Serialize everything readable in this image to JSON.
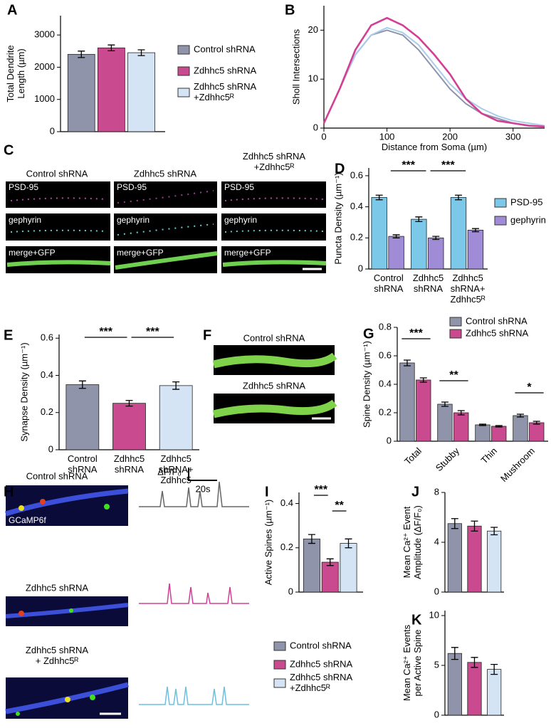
{
  "chart_data": [
    {
      "type": "bar",
      "panel": "A",
      "ylabel": "Total Dendrite\nLength (µm)",
      "categories": [
        null
      ],
      "series": [
        {
          "name": "Control shRNA",
          "color": "#8f94aa",
          "values": [
            2400
          ],
          "errors": [
            100
          ]
        },
        {
          "name": "Zdhhc5 shRNA",
          "color": "#c94a8e",
          "values": [
            2600
          ],
          "errors": [
            90
          ]
        },
        {
          "name": "Zdhhc5 shRNA\n+Zdhhc5ᴿ",
          "color": "#d4e4f5",
          "values": [
            2450
          ],
          "errors": [
            90
          ]
        }
      ],
      "ylim": [
        0,
        3600
      ],
      "yticks": [
        0,
        1000,
        2000,
        3000
      ],
      "legend": "right"
    },
    {
      "type": "line",
      "panel": "B",
      "xlabel": "Distance from Soma (µm)",
      "ylabel": "Sholl Intersections",
      "x": [
        0,
        25,
        50,
        75,
        100,
        125,
        150,
        175,
        200,
        225,
        250,
        275,
        300,
        325,
        350
      ],
      "series": [
        {
          "name": "Control shRNA",
          "color": "#8f94aa",
          "values": [
            1,
            8,
            15,
            19,
            20,
            19,
            16,
            12,
            8,
            5,
            3,
            2,
            1,
            0.5,
            0.3
          ]
        },
        {
          "name": "Zdhhc5 shRNA\n+Zdhhc5ᴿ",
          "color": "#a9cbec",
          "values": [
            1,
            8,
            15,
            19,
            20.5,
            19.5,
            17,
            13,
            9,
            6,
            4,
            2.5,
            1.5,
            1,
            0.5
          ]
        },
        {
          "name": "Zdhhc5 shRNA",
          "color": "#d23f95",
          "values": [
            1,
            8,
            16,
            21,
            22.5,
            21,
            18.5,
            15,
            11,
            6,
            3,
            1.5,
            1,
            0.5,
            0.3
          ]
        }
      ],
      "xlim": [
        0,
        350
      ],
      "xticks": [
        0,
        100,
        200,
        300
      ],
      "ylim": [
        0,
        25
      ],
      "yticks": [
        0,
        10,
        20
      ]
    },
    {
      "type": "bar",
      "panel": "D",
      "ylabel": "Puncta Density (µm⁻¹)",
      "categories": [
        "Control\nshRNA",
        "Zdhhc5\nshRNA",
        "Zdhhc5\nshRNA+\nZdhhc5ᴿ"
      ],
      "series": [
        {
          "name": "PSD-95",
          "color": "#7cc8e8",
          "values": [
            0.46,
            0.32,
            0.46
          ],
          "errors": [
            0.015,
            0.015,
            0.015
          ]
        },
        {
          "name": "gephyrin",
          "color": "#a08bd6",
          "values": [
            0.21,
            0.2,
            0.25
          ],
          "errors": [
            0.01,
            0.01,
            0.01
          ]
        }
      ],
      "ylim": [
        0,
        0.65
      ],
      "yticks": [
        0,
        0.2,
        0.4,
        0.6
      ],
      "significance": [
        "***",
        "***"
      ],
      "legend": "right"
    },
    {
      "type": "bar",
      "panel": "E",
      "ylabel": "Synapse Density (µm⁻¹)",
      "categories": [
        "Control\nshRNA",
        "Zdhhc5\nshRNA",
        "Zdhhc5\nshRNA+\nZdhhc5"
      ],
      "values": [
        0.35,
        0.25,
        0.345
      ],
      "errors": [
        0.02,
        0.015,
        0.02
      ],
      "colors": [
        "#8f94aa",
        "#c94a8e",
        "#d4e4f5"
      ],
      "ylim": [
        0,
        0.62
      ],
      "yticks": [
        0,
        0.2,
        0.4,
        0.6
      ],
      "significance": [
        "***",
        "***"
      ]
    },
    {
      "type": "bar",
      "panel": "G",
      "ylabel": "Spine Density (µm⁻¹)",
      "categories": [
        "Total",
        "Stubby",
        "Thin",
        "Mushroom"
      ],
      "xtick_rotation": 45,
      "series": [
        {
          "name": "Control shRNA",
          "color": "#8f94aa",
          "values": [
            0.55,
            0.26,
            0.115,
            0.18
          ],
          "errors": [
            0.02,
            0.015,
            0.005,
            0.01
          ]
        },
        {
          "name": "Zdhhc5 shRNA",
          "color": "#c94a8e",
          "values": [
            0.43,
            0.2,
            0.105,
            0.13
          ],
          "errors": [
            0.015,
            0.015,
            0.005,
            0.01
          ]
        }
      ],
      "ylim": [
        0,
        0.8
      ],
      "yticks": [
        0,
        0.2,
        0.4,
        0.6,
        0.8
      ],
      "significance": [
        "***",
        "**",
        null,
        "*"
      ],
      "legend": "top"
    },
    {
      "type": "bar",
      "panel": "I",
      "ylabel": "Active Spines (µm⁻¹)",
      "categories": [
        null
      ],
      "series": [
        {
          "name": "Control shRNA",
          "color": "#8f94aa",
          "values": [
            0.24
          ],
          "errors": [
            0.02
          ]
        },
        {
          "name": "Zdhhc5 shRNA",
          "color": "#c94a8e",
          "values": [
            0.135
          ],
          "errors": [
            0.015
          ]
        },
        {
          "name": "Zdhhc5 shRNA\n+Zdhhc5ᴿ",
          "color": "#d4e4f5",
          "values": [
            0.22
          ],
          "errors": [
            0.02
          ]
        }
      ],
      "ylim": [
        0,
        0.45
      ],
      "yticks": [
        0,
        0.2,
        0.4
      ],
      "significance": [
        "***",
        "**"
      ],
      "legend": "bottom"
    },
    {
      "type": "bar",
      "panel": "J",
      "ylabel": "Mean Ca²⁺ Event\nAmplitude (ΔF/F₀)",
      "categories": [
        null,
        null,
        null
      ],
      "values": [
        5.5,
        5.3,
        4.9
      ],
      "errors": [
        0.4,
        0.4,
        0.3
      ],
      "colors": [
        "#8f94aa",
        "#c94a8e",
        "#d4e4f5"
      ],
      "ylim": [
        0,
        8
      ],
      "yticks": [
        0,
        4,
        8
      ]
    },
    {
      "type": "bar",
      "panel": "K",
      "ylabel": "Mean Ca²⁺ Events\nper Active Spine",
      "categories": [
        null,
        null,
        null
      ],
      "values": [
        6.2,
        5.3,
        4.6
      ],
      "errors": [
        0.6,
        0.5,
        0.5
      ],
      "colors": [
        "#8f94aa",
        "#c94a8e",
        "#d4e4f5"
      ],
      "ylim": [
        0,
        10.5
      ],
      "yticks": [
        0,
        5,
        10
      ]
    }
  ],
  "image_panels": [
    {
      "panel": "C",
      "columns": [
        "Control shRNA",
        "Zdhhc5 shRNA",
        "Zdhhc5 shRNA\n+Zdhhc5ᴿ"
      ],
      "rows": [
        "PSD-95",
        "gephyrin",
        "merge+GFP"
      ]
    },
    {
      "panel": "F",
      "labels": [
        "Control shRNA",
        "Zdhhc5 shRNA"
      ]
    },
    {
      "panel": "H",
      "labels": [
        "Control shRNA",
        "Zdhhc5 shRNA",
        "Zdhhc5 shRNA\n+ Zdhhc5ᴿ"
      ],
      "channel": "GCaMP6f",
      "scale_y": "ΔF/F₀",
      "scale_x": "20s"
    }
  ]
}
